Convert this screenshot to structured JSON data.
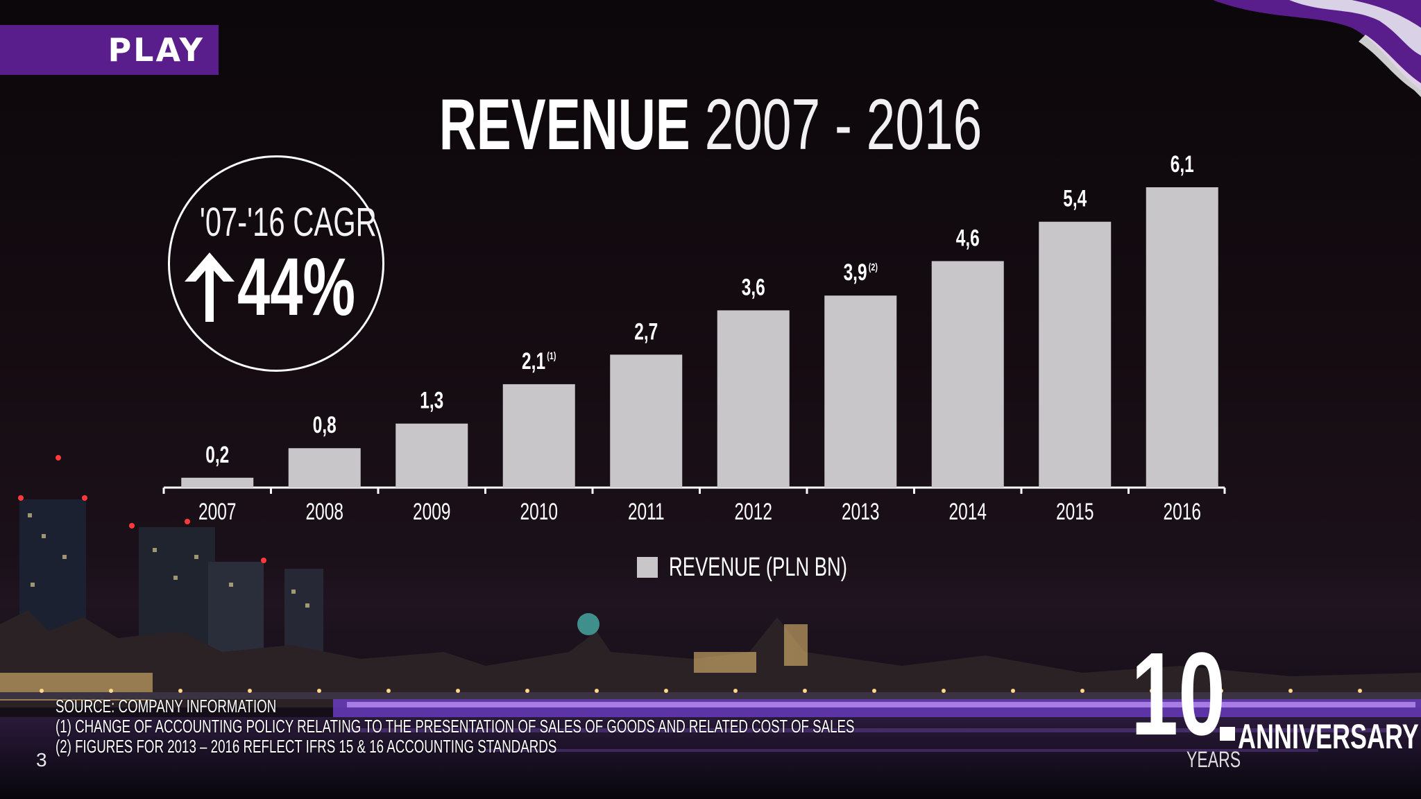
{
  "brand": {
    "logo_text": "PLAY",
    "color": "#5a1d8c"
  },
  "title": {
    "bold": "REVENUE",
    "light": "2007 - 2016"
  },
  "cagr": {
    "label": "'07-'16 CAGR",
    "value": "44%",
    "icon": "up-arrow-icon"
  },
  "chart_data": {
    "type": "bar",
    "categories": [
      "2007",
      "2008",
      "2009",
      "2010",
      "2011",
      "2012",
      "2013",
      "2014",
      "2015",
      "2016"
    ],
    "series": [
      {
        "name": "REVENUE (PLN BN)",
        "values": [
          0.2,
          0.8,
          1.3,
          2.1,
          2.7,
          3.6,
          3.9,
          4.6,
          5.4,
          6.1
        ]
      }
    ],
    "data_labels": [
      "0,2",
      "0,8",
      "1,3",
      "2,1",
      "2,7",
      "3,6",
      "3,9",
      "4,6",
      "5,4",
      "6,1"
    ],
    "label_footnotes": [
      "",
      "",
      "",
      "(1)",
      "",
      "",
      "(2)",
      "",
      "",
      ""
    ],
    "title": "REVENUE 2007 - 2016",
    "xlabel": "",
    "ylabel": "",
    "ylim": [
      0,
      6.1
    ],
    "grid": false,
    "legend": "bottom-center",
    "bar_color": "#c8c6c9"
  },
  "legend": {
    "label": "REVENUE (PLN BN)"
  },
  "footnotes": {
    "source": "SOURCE: COMPANY INFORMATION",
    "note1": "(1) CHANGE OF ACCOUNTING POLICY RELATING TO THE PRESENTATION OF SALES OF GOODS AND RELATED COST OF SALES",
    "note2": "(2) FIGURES FOR 2013 – 2016 REFLECT IFRS 15 & 16 ACCOUNTING STANDARDS"
  },
  "page_number": "3",
  "anniversary": {
    "number": "10",
    "word": "ANNIVERSARY",
    "years": "YEARS"
  }
}
